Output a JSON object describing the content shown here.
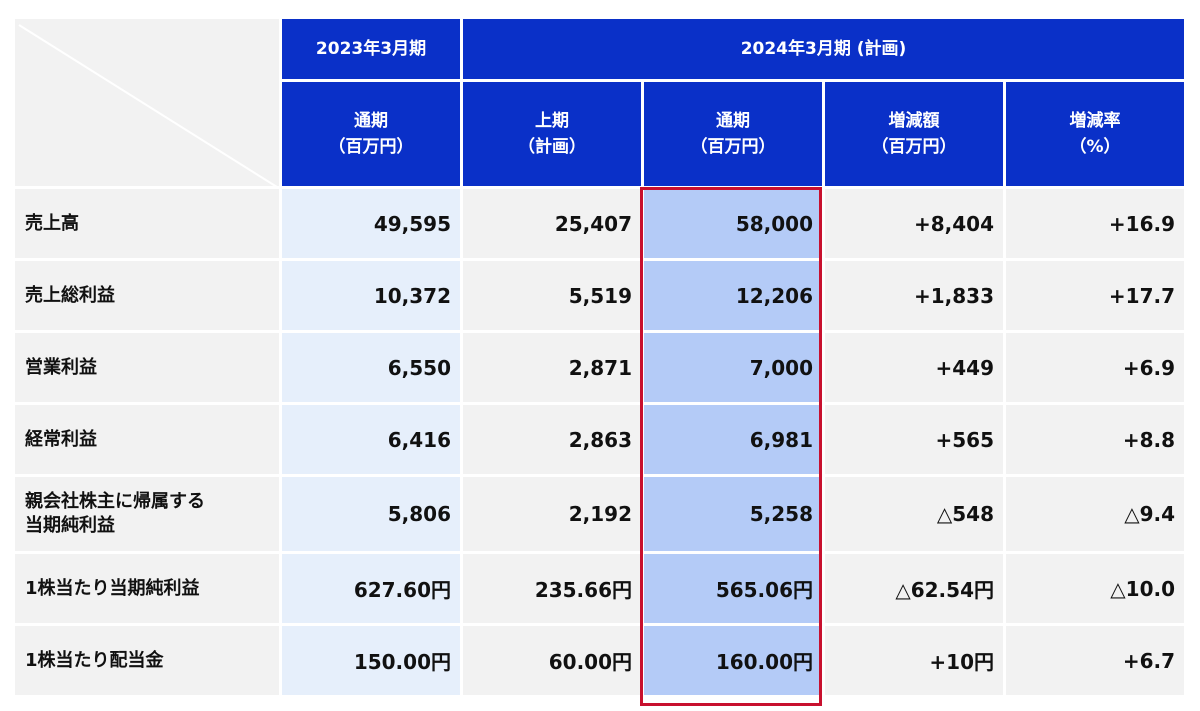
{
  "header": {
    "fy2023": "2023年3月期",
    "fy2024": "2024年3月期 (計画)",
    "columns": [
      {
        "line1": "通期",
        "line2": "（百万円）"
      },
      {
        "line1": "上期",
        "line2": "（計画）"
      },
      {
        "line1": "通期",
        "line2": "（百万円）"
      },
      {
        "line1": "増減額",
        "line2": "（百万円）"
      },
      {
        "line1": "増減率",
        "line2": "（%）"
      }
    ]
  },
  "rows": [
    {
      "label": "売上高",
      "prev": "49,595",
      "h1": "25,407",
      "full": "58,000",
      "diff": "+8,404",
      "rate": "+16.9"
    },
    {
      "label": "売上総利益",
      "prev": "10,372",
      "h1": "5,519",
      "full": "12,206",
      "diff": "+1,833",
      "rate": "+17.7"
    },
    {
      "label": "営業利益",
      "prev": "6,550",
      "h1": "2,871",
      "full": "7,000",
      "diff": "+449",
      "rate": "+6.9"
    },
    {
      "label": "経常利益",
      "prev": "6,416",
      "h1": "2,863",
      "full": "6,981",
      "diff": "+565",
      "rate": "+8.8"
    },
    {
      "label": "親会社株主に帰属する当期純利益",
      "label_line1": "親会社株主に帰属する",
      "label_line2": "当期純利益",
      "prev": "5,806",
      "h1": "2,192",
      "full": "5,258",
      "diff": "△548",
      "rate": "△9.4"
    },
    {
      "label": "1株当たり当期純利益",
      "prev": "627.60円",
      "h1": "235.66円",
      "full": "565.06円",
      "diff": "△62.54円",
      "rate": "△10.0"
    },
    {
      "label": "1株当たり配当金",
      "prev": "150.00円",
      "h1": "60.00円",
      "full": "160.00円",
      "diff": "+10円",
      "rate": "+6.7"
    }
  ],
  "highlight_color": "#c8102e"
}
